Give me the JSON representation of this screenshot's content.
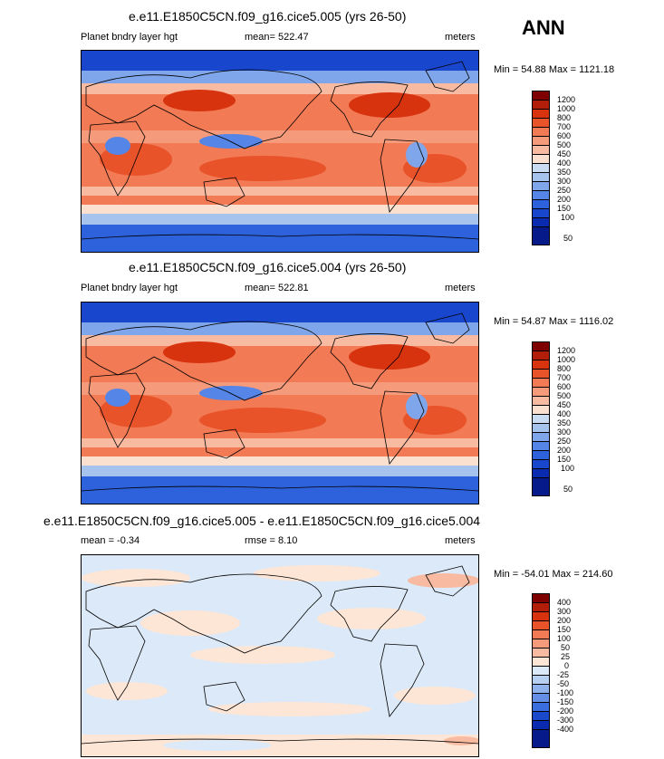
{
  "season": "ANN",
  "panels": [
    {
      "title": "e.e11.E1850C5CN.f09_g16.cice5.005 (yrs 26-50)",
      "left": "Planet bndry layer hgt",
      "center": "mean= 522.47",
      "right": "meters",
      "minmax": "Min =  54.88 Max = 1121.18",
      "levels": [
        "1200",
        "1000",
        "800",
        "700",
        "600",
        "500",
        "450",
        "400",
        "350",
        "300",
        "250",
        "200",
        "150",
        "100",
        "50"
      ],
      "colors": [
        "#7f0000",
        "#b21e0a",
        "#d6330e",
        "#e8532a",
        "#f27a55",
        "#f59a7a",
        "#f8bba2",
        "#fbe0d0",
        "#c9dcf2",
        "#a6c3ee",
        "#7fa6ea",
        "#5585e6",
        "#2e62dc",
        "#1846cc",
        "#0a2bb0",
        "#071a8a"
      ]
    },
    {
      "title": "e.e11.E1850C5CN.f09_g16.cice5.004 (yrs 26-50)",
      "left": "Planet bndry layer hgt",
      "center": "mean= 522.81",
      "right": "meters",
      "minmax": "Min =  54.87 Max = 1116.02",
      "levels": [
        "1200",
        "1000",
        "800",
        "700",
        "600",
        "500",
        "450",
        "400",
        "350",
        "300",
        "250",
        "200",
        "150",
        "100",
        "50"
      ],
      "colors": [
        "#7f0000",
        "#b21e0a",
        "#d6330e",
        "#e8532a",
        "#f27a55",
        "#f59a7a",
        "#f8bba2",
        "#fbe0d0",
        "#c9dcf2",
        "#a6c3ee",
        "#7fa6ea",
        "#5585e6",
        "#2e62dc",
        "#1846cc",
        "#0a2bb0",
        "#071a8a"
      ]
    },
    {
      "title": "e.e11.E1850C5CN.f09_g16.cice5.005 - e.e11.E1850C5CN.f09_g16.cice5.004",
      "left": "mean =  -0.34",
      "center": "rmse =   8.10",
      "right": "meters",
      "minmax": "Min = -54.01 Max = 214.60",
      "levels": [
        "400",
        "300",
        "200",
        "150",
        "100",
        "50",
        "25",
        "0",
        "-25",
        "-50",
        "-100",
        "-150",
        "-200",
        "-300",
        "-400"
      ],
      "colors": [
        "#7f0000",
        "#b21e0a",
        "#d6330e",
        "#e8532a",
        "#f27a55",
        "#f59a7a",
        "#f8bba2",
        "#fde6d6",
        "#dbe9f8",
        "#b7cff0",
        "#8fb2ec",
        "#658fe6",
        "#3a6ddd",
        "#1a49cc",
        "#0a2bb0",
        "#071a8a"
      ]
    }
  ]
}
